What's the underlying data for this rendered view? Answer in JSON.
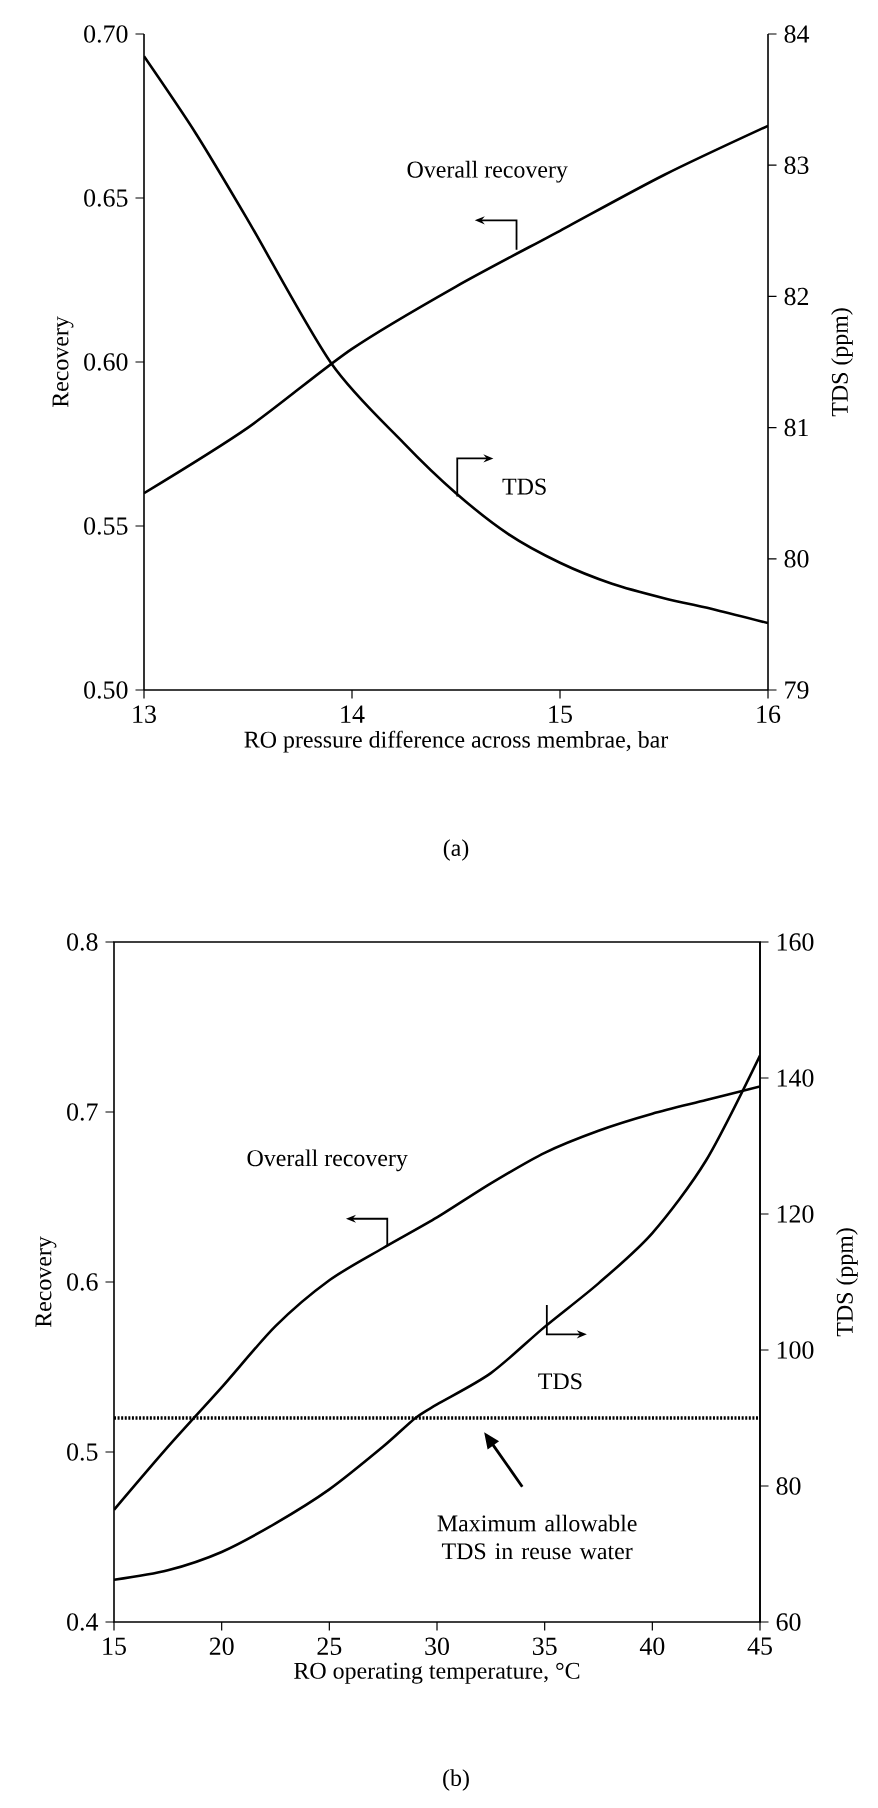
{
  "chart_data": [
    {
      "type": "line",
      "xlabel": "RO pressure difference across membrae, bar",
      "ylabel": "Recovery",
      "y2label": "TDS (ppm)",
      "xlim": [
        13,
        16
      ],
      "xticks": [
        13,
        14,
        15,
        16
      ],
      "ylim": [
        0.5,
        0.7
      ],
      "yticks": [
        {
          "value": 0.5,
          "label": "0.50"
        },
        {
          "value": 0.55,
          "label": "0.55"
        },
        {
          "value": 0.6,
          "label": "0.60"
        },
        {
          "value": 0.65,
          "label": "0.65"
        },
        {
          "value": 0.7,
          "label": "0.70"
        }
      ],
      "y2lim": [
        79,
        84
      ],
      "y2ticks": [
        79,
        80,
        81,
        82,
        83,
        84
      ],
      "series": [
        {
          "name": "Overall recovery",
          "color": "#000000",
          "x": [
            13,
            13.5,
            14,
            14.5,
            15,
            15.5,
            16
          ],
          "values": [
            0.56,
            0.58,
            0.604,
            0.623,
            0.64,
            0.657,
            0.672
          ]
        },
        {
          "name": "TDS",
          "color": "#000000",
          "axis": "y2",
          "x": [
            13,
            13.25,
            13.5,
            13.9,
            14.25,
            14.5,
            14.75,
            15,
            15.25,
            15.5,
            15.75,
            16
          ],
          "values": [
            83.83,
            83.24,
            82.58,
            81.49,
            80.88,
            80.5,
            80.19,
            79.97,
            79.81,
            79.7,
            79.61,
            79.51
          ]
        }
      ],
      "annotations": [
        "(a)"
      ]
    },
    {
      "type": "line",
      "xlabel": "RO operating temperature, °C",
      "ylabel": "Recovery",
      "y2label": "TDS (ppm)",
      "xlim": [
        15,
        45
      ],
      "xticks": [
        15,
        20,
        25,
        30,
        35,
        40,
        45
      ],
      "ylim": [
        0.4,
        0.8
      ],
      "yticks": [
        0.4,
        0.5,
        0.6,
        0.7,
        0.8
      ],
      "y2lim": [
        60,
        160
      ],
      "y2ticks": [
        60,
        80,
        100,
        120,
        140,
        160
      ],
      "series": [
        {
          "name": "Overall recovery",
          "color": "#000000",
          "x": [
            15,
            17.5,
            20,
            22.5,
            25,
            27.5,
            30,
            32.5,
            35,
            37.5,
            40,
            42.5,
            45
          ],
          "values": [
            0.466,
            0.503,
            0.538,
            0.574,
            0.601,
            0.62,
            0.638,
            0.658,
            0.676,
            0.689,
            0.699,
            0.707,
            0.715
          ]
        },
        {
          "name": "TDS",
          "color": "#000000",
          "axis": "y2",
          "x": [
            15,
            17.5,
            20,
            22.5,
            25,
            27.5,
            29,
            30,
            32.5,
            35,
            37.5,
            40,
            42.5,
            45
          ],
          "values": [
            66.2,
            67.6,
            70.3,
            74.5,
            79.5,
            85.8,
            90,
            92,
            96.6,
            103.4,
            109.8,
            117.2,
            127.9,
            143.3
          ]
        }
      ],
      "ref_lines": [
        {
          "axis": "y2",
          "value": 90,
          "label": "Maximum allowable TDS in reuse water",
          "line_style": "dotted",
          "color": "#000000"
        }
      ],
      "annotations": [
        "(b)"
      ]
    }
  ]
}
